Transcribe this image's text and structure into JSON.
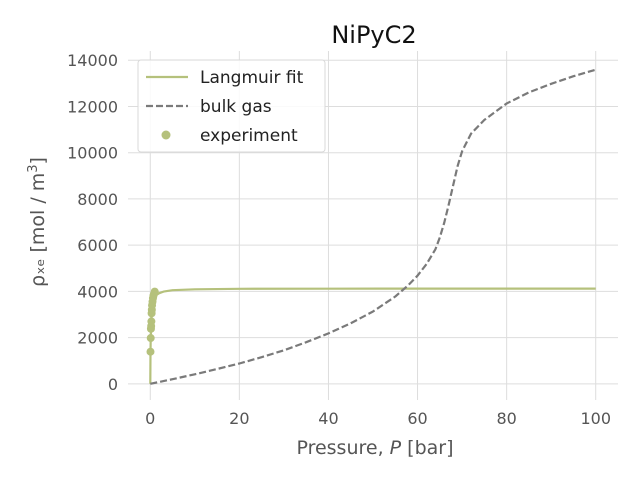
{
  "chart_data": {
    "type": "line",
    "title": "NiPyC2",
    "xlabel_prefix": "Pressure, ",
    "xlabel_var": "P",
    "xlabel_suffix": " [bar]",
    "ylabel_main": "ρₓₑ [mol / m",
    "ylabel_sup": "3",
    "ylabel_close": "]",
    "xlim": [
      -5,
      105
    ],
    "ylim": [
      -700,
      14400
    ],
    "xticks": [
      0,
      20,
      40,
      60,
      80,
      100
    ],
    "yticks": [
      0,
      2000,
      4000,
      6000,
      8000,
      10000,
      12000,
      14000
    ],
    "grid": true,
    "legend_position": "top-left",
    "series": [
      {
        "name": "Langmuir fit",
        "style": "solid",
        "color": "#b5c17c",
        "x": [
          0,
          0.05,
          0.1,
          0.2,
          0.3,
          0.5,
          0.7,
          1.0,
          1.5,
          2,
          3,
          5,
          10,
          20,
          40,
          60,
          80,
          100
        ],
        "y": [
          0,
          1390,
          1900,
          2580,
          2950,
          3370,
          3570,
          3730,
          3860,
          3920,
          3990,
          4050,
          4090,
          4110,
          4115,
          4118,
          4120,
          4120
        ]
      },
      {
        "name": "bulk gas",
        "style": "dashed",
        "color": "#7a7a7a",
        "x": [
          0,
          5,
          10,
          15,
          20,
          25,
          30,
          35,
          40,
          45,
          50,
          55,
          58,
          60,
          62,
          64,
          65,
          66,
          67,
          68,
          69,
          70,
          72,
          75,
          80,
          85,
          90,
          95,
          100
        ],
        "y": [
          0,
          200,
          410,
          640,
          880,
          1150,
          1450,
          1800,
          2180,
          2620,
          3130,
          3780,
          4280,
          4680,
          5180,
          5820,
          6330,
          6980,
          7750,
          8600,
          9420,
          10060,
          10820,
          11420,
          12130,
          12610,
          12980,
          13310,
          13590
        ]
      },
      {
        "name": "experiment",
        "style": "points",
        "color": "#b5c17c",
        "x": [
          0.05,
          0.1,
          0.15,
          0.2,
          0.25,
          0.3,
          0.35,
          0.4,
          0.5,
          0.6,
          0.7,
          0.8,
          1.0
        ],
        "y": [
          1390,
          1980,
          2380,
          2500,
          2700,
          3050,
          3200,
          3400,
          3550,
          3700,
          3800,
          3880,
          3990
        ]
      }
    ]
  }
}
